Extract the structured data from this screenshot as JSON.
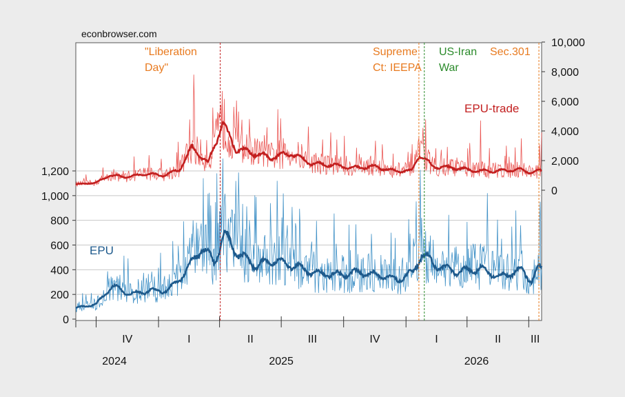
{
  "source": "econbrowser.com",
  "chart_data": {
    "type": "line",
    "left_axis": {
      "ticks": [
        0,
        200,
        400,
        600,
        800,
        1000,
        1200
      ],
      "tick_labels": [
        "0",
        "200",
        "400",
        "600",
        "800",
        "1,000",
        "1,200"
      ],
      "range": [
        0,
        1200
      ]
    },
    "right_axis": {
      "ticks": [
        0,
        2000,
        4000,
        6000,
        8000,
        10000
      ],
      "tick_labels": [
        "0",
        "2,000",
        "4,000",
        "6,000",
        "8,000",
        "10,000"
      ],
      "range": [
        0,
        10000
      ]
    },
    "x_axis": {
      "range": [
        "2024-09-01",
        "2026-07-20"
      ],
      "quarters": [
        {
          "label": "IV",
          "start": "2024-10-01"
        },
        {
          "label": "I",
          "start": "2025-01-01"
        },
        {
          "label": "II",
          "start": "2025-04-01"
        },
        {
          "label": "III",
          "start": "2025-07-01"
        },
        {
          "label": "IV",
          "start": "2025-10-01"
        },
        {
          "label": "I",
          "start": "2026-01-01"
        },
        {
          "label": "II",
          "start": "2026-04-01"
        },
        {
          "label": "III",
          "start": "2026-07-01"
        }
      ],
      "years": [
        {
          "label": "2024",
          "center": "2024-10-28"
        },
        {
          "label": "2025",
          "center": "2025-07-01"
        },
        {
          "label": "2026",
          "center": "2026-04-15"
        }
      ]
    },
    "grid": true,
    "series": [
      {
        "name": "EPU-trade",
        "axis": "right",
        "color_daily": "#e8433f",
        "color_smooth": "#c21f1f",
        "smooth_points": [
          [
            "2024-09-01",
            400
          ],
          [
            "2024-10-01",
            500
          ],
          [
            "2024-10-20",
            1000
          ],
          [
            "2024-11-15",
            900
          ],
          [
            "2024-12-15",
            1100
          ],
          [
            "2025-01-10",
            1000
          ],
          [
            "2025-02-01",
            1400
          ],
          [
            "2025-02-20",
            2900
          ],
          [
            "2025-03-15",
            1800
          ],
          [
            "2025-04-05",
            4500
          ],
          [
            "2025-04-25",
            2800
          ],
          [
            "2025-05-20",
            2500
          ],
          [
            "2025-06-15",
            2200
          ],
          [
            "2025-07-15",
            2500
          ],
          [
            "2025-08-15",
            1800
          ],
          [
            "2025-09-15",
            1700
          ],
          [
            "2025-10-15",
            1500
          ],
          [
            "2025-11-15",
            1600
          ],
          [
            "2025-12-15",
            1300
          ],
          [
            "2026-01-10",
            1300
          ],
          [
            "2026-01-20",
            2400
          ],
          [
            "2026-02-10",
            1600
          ],
          [
            "2026-03-15",
            1500
          ],
          [
            "2026-04-15",
            1300
          ],
          [
            "2026-05-15",
            1300
          ],
          [
            "2026-06-15",
            1400
          ],
          [
            "2026-07-05",
            1200
          ],
          [
            "2026-07-15",
            1300
          ]
        ],
        "spikes": [
          [
            "2025-02-22",
            7800
          ],
          [
            "2025-04-05",
            6700
          ],
          [
            "2025-05-15",
            4800
          ],
          [
            "2025-08-10",
            4300
          ],
          [
            "2025-09-12",
            3900
          ],
          [
            "2026-01-26",
            4200
          ],
          [
            "2026-04-21",
            4700
          ],
          [
            "2026-06-20",
            3500
          ],
          [
            "2026-07-20",
            3900
          ]
        ]
      },
      {
        "name": "EPU",
        "axis": "left",
        "color_daily": "#2e86c1",
        "color_smooth": "#1e5a8c",
        "smooth_points": [
          [
            "2024-09-01",
            90
          ],
          [
            "2024-10-01",
            120
          ],
          [
            "2024-10-25",
            270
          ],
          [
            "2024-11-20",
            200
          ],
          [
            "2024-12-20",
            230
          ],
          [
            "2025-01-15",
            230
          ],
          [
            "2025-02-10",
            380
          ],
          [
            "2025-03-05",
            580
          ],
          [
            "2025-03-25",
            460
          ],
          [
            "2025-04-08",
            690
          ],
          [
            "2025-04-28",
            530
          ],
          [
            "2025-05-25",
            430
          ],
          [
            "2025-06-20",
            480
          ],
          [
            "2025-07-20",
            430
          ],
          [
            "2025-08-20",
            370
          ],
          [
            "2025-09-25",
            360
          ],
          [
            "2025-10-25",
            380
          ],
          [
            "2025-11-25",
            350
          ],
          [
            "2025-12-20",
            320
          ],
          [
            "2026-01-12",
            380
          ],
          [
            "2026-01-24",
            530
          ],
          [
            "2026-02-15",
            430
          ],
          [
            "2026-03-20",
            380
          ],
          [
            "2026-04-20",
            410
          ],
          [
            "2026-05-20",
            340
          ],
          [
            "2026-06-20",
            400
          ],
          [
            "2026-07-05",
            310
          ],
          [
            "2026-07-15",
            410
          ]
        ],
        "spikes": [
          [
            "2025-04-08",
            960
          ],
          [
            "2025-04-20",
            880
          ],
          [
            "2025-05-15",
            800
          ],
          [
            "2025-07-10",
            760
          ],
          [
            "2025-09-20",
            610
          ],
          [
            "2025-12-10",
            700
          ],
          [
            "2026-01-24",
            820
          ],
          [
            "2026-05-01",
            1020
          ],
          [
            "2026-07-18",
            950
          ]
        ]
      }
    ],
    "annotations": [
      {
        "text_lines": [
          "\"Liberation",
          "Day\""
        ],
        "date": "2025-04-02",
        "color": "#e87a1f",
        "line_color": "#c21f1f"
      },
      {
        "text_lines": [
          "Supreme",
          "Ct: IEEPA"
        ],
        "date": "2026-01-20",
        "color": "#e87a1f",
        "line_color": "#e87a1f"
      },
      {
        "text_lines": [
          "US-Iran",
          "War"
        ],
        "date": "2026-01-28",
        "color": "#2a8a2a",
        "line_color": "#2a8a2a"
      },
      {
        "text_lines": [
          "Sec.301"
        ],
        "date": "2026-07-16",
        "color": "#e87a1f",
        "line_color": "#e87a1f"
      }
    ],
    "series_labels": [
      {
        "text": "EPU-trade",
        "color": "#c21f1f"
      },
      {
        "text": "EPU",
        "color": "#1e5a8c"
      }
    ]
  }
}
